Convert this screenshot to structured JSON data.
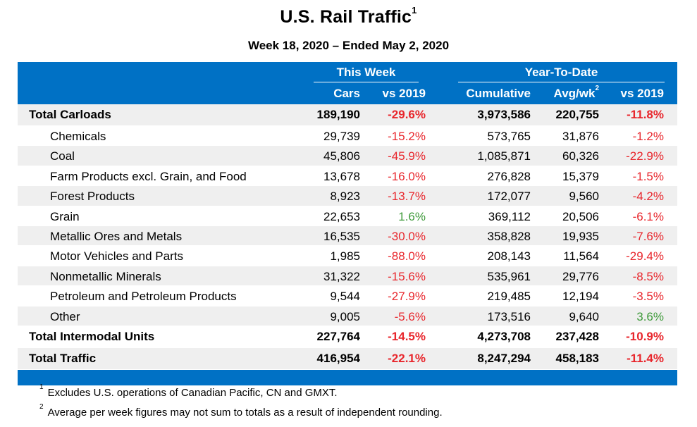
{
  "title": "U.S. Rail Traffic",
  "title_sup": "1",
  "subtitle": "Week 18, 2020 – Ended May 2, 2020",
  "header": {
    "group_this_week": "This Week",
    "group_ytd": "Year-To-Date",
    "col_cars": "Cars",
    "col_vs2019_week": "vs 2019",
    "col_cumulative": "Cumulative",
    "col_avgwk": "Avg/wk",
    "col_avgwk_sup": "2",
    "col_vs2019_ytd": "vs 2019"
  },
  "rows": [
    {
      "label": "Total Carloads",
      "cars": "189,190",
      "vs_week": "-29.6%",
      "cumulative": "3,973,586",
      "avg": "220,755",
      "vs_ytd": "-11.8%"
    },
    {
      "label": "Chemicals",
      "cars": "29,739",
      "vs_week": "-15.2%",
      "cumulative": "573,765",
      "avg": "31,876",
      "vs_ytd": "-1.2%"
    },
    {
      "label": "Coal",
      "cars": "45,806",
      "vs_week": "-45.9%",
      "cumulative": "1,085,871",
      "avg": "60,326",
      "vs_ytd": "-22.9%"
    },
    {
      "label": "Farm Products excl. Grain, and Food",
      "cars": "13,678",
      "vs_week": "-16.0%",
      "cumulative": "276,828",
      "avg": "15,379",
      "vs_ytd": "-1.5%"
    },
    {
      "label": "Forest Products",
      "cars": "8,923",
      "vs_week": "-13.7%",
      "cumulative": "172,077",
      "avg": "9,560",
      "vs_ytd": "-4.2%"
    },
    {
      "label": "Grain",
      "cars": "22,653",
      "vs_week": "1.6%",
      "cumulative": "369,112",
      "avg": "20,506",
      "vs_ytd": "-6.1%"
    },
    {
      "label": "Metallic Ores and Metals",
      "cars": "16,535",
      "vs_week": "-30.0%",
      "cumulative": "358,828",
      "avg": "19,935",
      "vs_ytd": "-7.6%"
    },
    {
      "label": "Motor Vehicles and Parts",
      "cars": "1,985",
      "vs_week": "-88.0%",
      "cumulative": "208,143",
      "avg": "11,564",
      "vs_ytd": "-29.4%"
    },
    {
      "label": "Nonmetallic Minerals",
      "cars": "31,322",
      "vs_week": "-15.6%",
      "cumulative": "535,961",
      "avg": "29,776",
      "vs_ytd": "-8.5%"
    },
    {
      "label": "Petroleum and Petroleum Products",
      "cars": "9,544",
      "vs_week": "-27.9%",
      "cumulative": "219,485",
      "avg": "12,194",
      "vs_ytd": "-3.5%"
    },
    {
      "label": "Other",
      "cars": "9,005",
      "vs_week": "-5.6%",
      "cumulative": "173,516",
      "avg": "9,640",
      "vs_ytd": "3.6%"
    },
    {
      "label": "Total Intermodal Units",
      "cars": "227,764",
      "vs_week": "-14.5%",
      "cumulative": "4,273,708",
      "avg": "237,428",
      "vs_ytd": "-10.9%"
    },
    {
      "label": "Total Traffic",
      "cars": "416,954",
      "vs_week": "-22.1%",
      "cumulative": "8,247,294",
      "avg": "458,183",
      "vs_ytd": "-11.4%"
    }
  ],
  "footnotes": [
    {
      "mark": "1",
      "text": "Excludes U.S. operations of Canadian Pacific, CN and GMXT."
    },
    {
      "mark": "2",
      "text": "Average per week figures may not sum to totals as a result of independent rounding."
    }
  ],
  "colors": {
    "header_blue": "#0071c5",
    "negative": "#e8262c",
    "positive": "#3f9a3b",
    "shade": "#efefef"
  }
}
